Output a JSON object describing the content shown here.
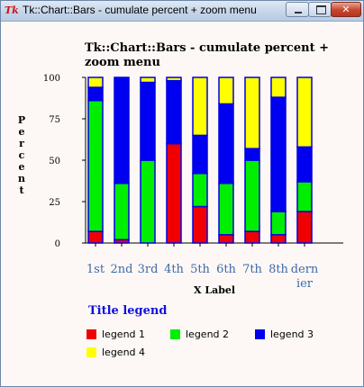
{
  "window": {
    "title": "Tk::Chart::Bars - cumulate percent + zoom menu",
    "app_icon_text": "Tk",
    "minimize_glyph": "",
    "maximize_glyph": "",
    "close_glyph": "✕"
  },
  "colors": {
    "legend 1": "#f00000",
    "legend 2": "#00ee00",
    "legend 3": "#0000f0",
    "legend 4": "#ffff00",
    "bar_outline": "#0000e0",
    "x_tick_label": "#3f6aa8",
    "legend_title": "#1010e0"
  },
  "chart_data": {
    "type": "bar",
    "stacked": true,
    "percent": true,
    "title": "Tk::Chart::Bars - cumulate percent + zoom menu",
    "xlabel": "X Label",
    "ylabel": "Percent",
    "ylim": [
      0,
      100
    ],
    "yticks": [
      "0",
      "25",
      "50",
      "75",
      "100"
    ],
    "categories": [
      "1st",
      "2nd",
      "3rd",
      "4th",
      "5th",
      "6th",
      "7th",
      "8th",
      "dernier"
    ],
    "category_display": [
      "1st",
      "2nd",
      "3rd",
      "4th",
      "5th",
      "6th",
      "7th",
      "8th",
      "dern\nier"
    ],
    "series": [
      {
        "name": "legend 1",
        "values": [
          7,
          2,
          0,
          60,
          22,
          5,
          7,
          5,
          19
        ]
      },
      {
        "name": "legend 2",
        "values": [
          79,
          34,
          50,
          0,
          20,
          31,
          43,
          14,
          18
        ]
      },
      {
        "name": "legend 3",
        "values": [
          8,
          64,
          47,
          38,
          23,
          48,
          7,
          69,
          21
        ]
      },
      {
        "name": "legend 4",
        "values": [
          6,
          0,
          3,
          2,
          35,
          16,
          43,
          12,
          42
        ]
      }
    ],
    "grid": false,
    "legend": {
      "title": "Title legend",
      "placement": "bottom"
    }
  }
}
